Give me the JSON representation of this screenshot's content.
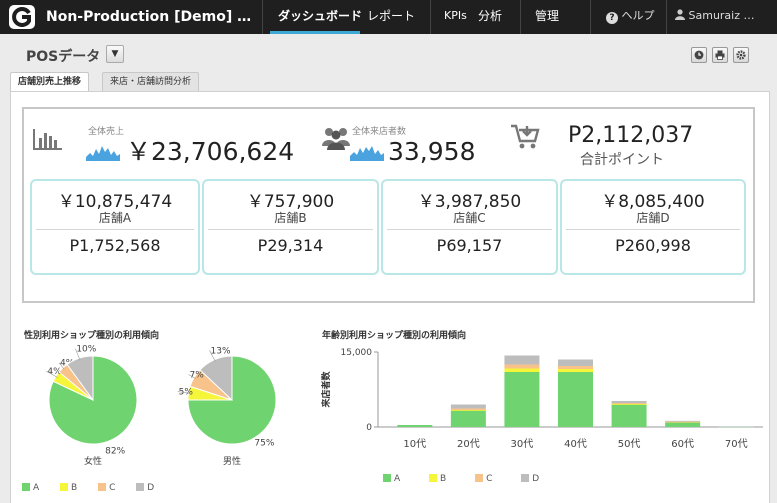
{
  "topbar": {
    "app_title": "Non-Production [Demo] …",
    "nav": [
      "ダッシュボード",
      "レポート",
      "KPIs",
      "分析",
      "管理"
    ],
    "help": "ヘルプ",
    "user": "Samuraiz …"
  },
  "page": {
    "title": "POSデータ",
    "tabs": [
      "店舗別売上推移",
      "来店・店舗訪問分析"
    ]
  },
  "kpi": {
    "sales_label": "全体売上",
    "sales_value": "￥23,706,624",
    "visitors_label": "全体来店者数",
    "visitors_value": "33,958",
    "points_value": "P2,112,037",
    "points_label": "合計ポイント"
  },
  "stores": [
    {
      "sales": "￥10,875,474",
      "name": "店舗A",
      "points": "P1,752,568"
    },
    {
      "sales": "￥757,900",
      "name": "店舗B",
      "points": "P29,314"
    },
    {
      "sales": "￥3,987,850",
      "name": "店舗C",
      "points": "P69,157"
    },
    {
      "sales": "￥8,085,400",
      "name": "店舗D",
      "points": "P260,998"
    }
  ],
  "colors": {
    "A": "#6fd36f",
    "B": "#f5f53a",
    "C": "#f7c38a",
    "D": "#bdbdbd"
  },
  "chart_data": [
    {
      "type": "pie",
      "title": "性別利用ショップ種別の利用傾向",
      "charts": [
        {
          "label": "女性",
          "slices": [
            {
              "name": "A",
              "value": 82
            },
            {
              "name": "B",
              "value": 4
            },
            {
              "name": "C",
              "value": 4
            },
            {
              "name": "D",
              "value": 10
            }
          ],
          "labels": [
            "82%",
            "4%",
            "4%",
            "10%"
          ]
        },
        {
          "label": "男性",
          "slices": [
            {
              "name": "A",
              "value": 75
            },
            {
              "name": "B",
              "value": 5
            },
            {
              "name": "C",
              "value": 7
            },
            {
              "name": "D",
              "value": 13
            }
          ],
          "labels": [
            "75%",
            "5%",
            "7%",
            "13%"
          ]
        }
      ],
      "legend": [
        "A",
        "B",
        "C",
        "D"
      ],
      "legend_position": "bottom"
    },
    {
      "type": "bar",
      "stacked": true,
      "title": "年齢別利用ショップ種別の利用傾向",
      "ylabel": "来店者数",
      "ylim": [
        0,
        15000
      ],
      "yticks": [
        "15,000",
        "0"
      ],
      "categories": [
        "10代",
        "20代",
        "30代",
        "40代",
        "50代",
        "60代",
        "70代"
      ],
      "series": [
        {
          "name": "A",
          "values": [
            400,
            3300,
            11000,
            11000,
            4500,
            1000,
            100
          ]
        },
        {
          "name": "B",
          "values": [
            0,
            100,
            700,
            600,
            100,
            30,
            0
          ]
        },
        {
          "name": "C",
          "values": [
            0,
            300,
            800,
            600,
            200,
            50,
            0
          ]
        },
        {
          "name": "D",
          "values": [
            0,
            800,
            1800,
            1300,
            400,
            150,
            30
          ]
        }
      ],
      "legend": [
        "A",
        "B",
        "C",
        "D"
      ],
      "legend_position": "bottom",
      "grid": false
    }
  ]
}
